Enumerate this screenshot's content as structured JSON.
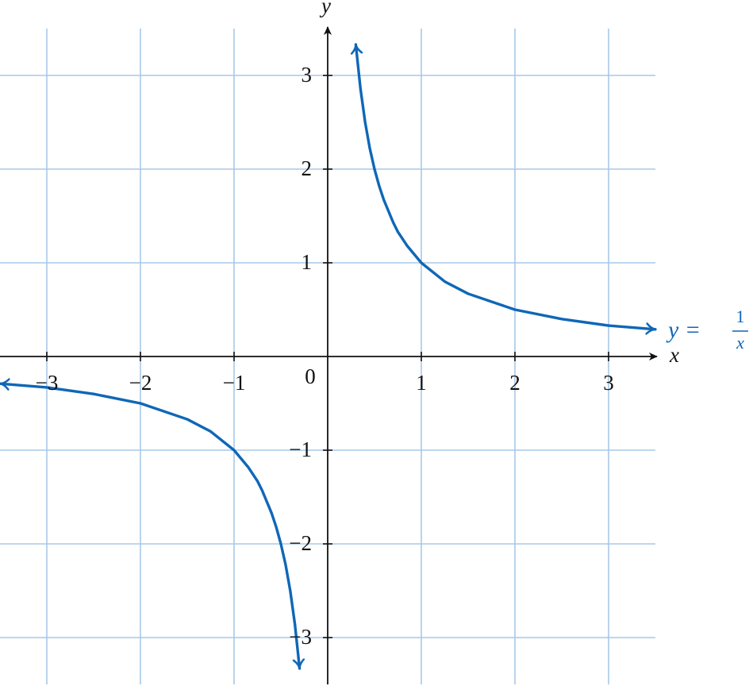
{
  "chart_data": {
    "type": "line",
    "x_label": "x",
    "y_label": "y",
    "origin_label": "0",
    "curve_label": {
      "lhs": "y =",
      "numerator": "1",
      "denominator": "x"
    },
    "xlim": [
      -3.5,
      3.5
    ],
    "ylim": [
      -3.5,
      3.5
    ],
    "xticks": [
      {
        "value": -3,
        "label": "−3"
      },
      {
        "value": -2,
        "label": "−2"
      },
      {
        "value": -1,
        "label": "−1"
      },
      1,
      2,
      3
    ],
    "yticks": [
      {
        "value": -3,
        "label": "−3"
      },
      {
        "value": -2,
        "label": "−2"
      },
      {
        "value": -1,
        "label": "−1"
      },
      1,
      2,
      3
    ],
    "grid": true,
    "grid_color": "#a8c8e8",
    "series": [
      {
        "color": "#0f67b7",
        "x": [
          -3.5,
          -3,
          -2.5,
          -2,
          -1.5,
          -1.25,
          -1,
          -0.85,
          -0.75,
          -0.7,
          -0.6,
          -0.55,
          -0.5,
          -0.45,
          -0.4,
          -0.35,
          -0.3
        ],
        "values": [
          -0.29,
          -0.33,
          -0.4,
          -0.5,
          -0.67,
          -0.8,
          -1,
          -1.18,
          -1.33,
          -1.43,
          -1.67,
          -1.82,
          -2,
          -2.22,
          -2.5,
          -2.86,
          -3.33
        ]
      },
      {
        "color": "#0f67b7",
        "x": [
          0.3,
          0.35,
          0.4,
          0.45,
          0.5,
          0.55,
          0.6,
          0.7,
          0.75,
          0.85,
          1,
          1.25,
          1.5,
          2,
          2.5,
          3,
          3.5
        ],
        "values": [
          3.33,
          2.86,
          2.5,
          2.22,
          2,
          1.82,
          1.67,
          1.43,
          1.33,
          1.18,
          1,
          0.8,
          0.67,
          0.5,
          0.4,
          0.33,
          0.29
        ]
      }
    ]
  }
}
